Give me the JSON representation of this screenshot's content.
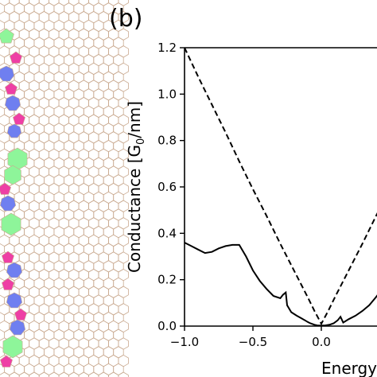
{
  "panel_label": "(b)",
  "colors": {
    "axis": "#000000",
    "lattice": "#c9a98f",
    "defect_pink": "#ee3fa5",
    "defect_blue": "#6f7ff0",
    "defect_green": "#8ef59a"
  },
  "chart_data": {
    "type": "line",
    "xlabel": "Energy [eV]",
    "ylabel": "Conductance [G0/nm]",
    "ylabel_parts": {
      "prefix": "Conductance [G",
      "subscript": "0",
      "suffix": "/nm]"
    },
    "xlim": [
      -1.0,
      0.5
    ],
    "ylim": [
      0.0,
      1.2
    ],
    "x_ticks": [
      -1.0,
      -0.5,
      0.0
    ],
    "x_tick_labels": [
      "−1.0",
      "−0.5",
      "0.0"
    ],
    "y_ticks": [
      0.0,
      0.2,
      0.4,
      0.6,
      0.8,
      1.0,
      1.2
    ],
    "y_tick_labels": [
      "0.0",
      "0.2",
      "0.4",
      "0.6",
      "0.8",
      "1.0",
      "1.2"
    ],
    "grid": false,
    "series": [
      {
        "style": "solid",
        "x": [
          -1.0,
          -0.95,
          -0.9,
          -0.85,
          -0.8,
          -0.75,
          -0.7,
          -0.65,
          -0.6,
          -0.55,
          -0.5,
          -0.45,
          -0.4,
          -0.35,
          -0.3,
          -0.28,
          -0.26,
          -0.25,
          -0.22,
          -0.18,
          -0.15,
          -0.12,
          -0.1,
          -0.08,
          -0.05,
          -0.03,
          0.0,
          0.03,
          0.06,
          0.09,
          0.12,
          0.14,
          0.16,
          0.2,
          0.25,
          0.3,
          0.35,
          0.4,
          0.45,
          0.5
        ],
        "y": [
          0.36,
          0.345,
          0.33,
          0.315,
          0.32,
          0.335,
          0.345,
          0.35,
          0.35,
          0.3,
          0.24,
          0.195,
          0.16,
          0.13,
          0.12,
          0.135,
          0.145,
          0.09,
          0.06,
          0.045,
          0.035,
          0.025,
          0.018,
          0.012,
          0.006,
          0.003,
          0.002,
          0.003,
          0.006,
          0.012,
          0.025,
          0.04,
          0.015,
          0.03,
          0.045,
          0.065,
          0.09,
          0.125,
          0.165,
          0.21
        ]
      },
      {
        "style": "dashed",
        "x": [
          -1.0,
          -0.9,
          -0.8,
          -0.7,
          -0.6,
          -0.5,
          -0.4,
          -0.3,
          -0.2,
          -0.1,
          -0.05,
          0.0,
          0.05,
          0.1,
          0.2,
          0.3,
          0.4,
          0.5
        ],
        "y": [
          1.2,
          1.075,
          0.955,
          0.835,
          0.71,
          0.59,
          0.475,
          0.355,
          0.24,
          0.125,
          0.065,
          0.01,
          0.065,
          0.125,
          0.24,
          0.355,
          0.475,
          0.59
        ]
      }
    ]
  }
}
